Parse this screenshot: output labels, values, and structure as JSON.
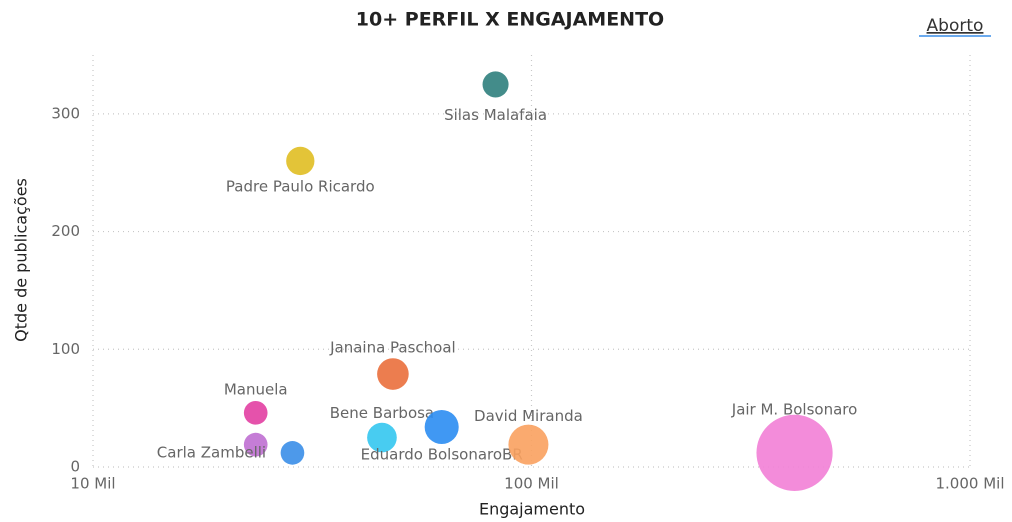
{
  "chart_data": {
    "type": "scatter",
    "title": "10+ PERFIL X ENGAJAMENTO",
    "link": "Aborto",
    "x_label": "Engajamento",
    "y_label": "Qtde de publicações",
    "log_x": true,
    "grid": true,
    "xlim": [
      10000,
      1000000
    ],
    "ylim": [
      0,
      350
    ],
    "xticks": [
      {
        "value": 10000,
        "label": "10 Mil"
      },
      {
        "value": 100000,
        "label": "100 Mil"
      },
      {
        "value": 1000000,
        "label": "1.000 Mil"
      }
    ],
    "yticks": [
      0,
      100,
      200,
      300
    ],
    "names": [
      "Silas Malafaia",
      "Padre Paulo Ricardo",
      "Janaina Paschoal",
      "Manuela",
      null,
      "Carla Zambelli",
      "Bene Barbosa",
      "Eduardo BolsonaroBR",
      "David Miranda",
      "Jair M. Bolsonaro"
    ],
    "x": [
      82800,
      29700,
      48300,
      23500,
      23500,
      28500,
      45600,
      62400,
      98400,
      398000
    ],
    "y": [
      325,
      260,
      79,
      46,
      19,
      12,
      25,
      34,
      19,
      12
    ],
    "sizes": [
      170,
      200,
      250,
      140,
      140,
      140,
      220,
      290,
      400,
      1450
    ],
    "colors": [
      "#2f7f7d",
      "#e0be22",
      "#ea6f3c",
      "#e23fa2",
      "#bf6fd2",
      "#3a8ee8",
      "#34c6f0",
      "#2b8df2",
      "#f9a15f",
      "#f27fd6"
    ]
  }
}
